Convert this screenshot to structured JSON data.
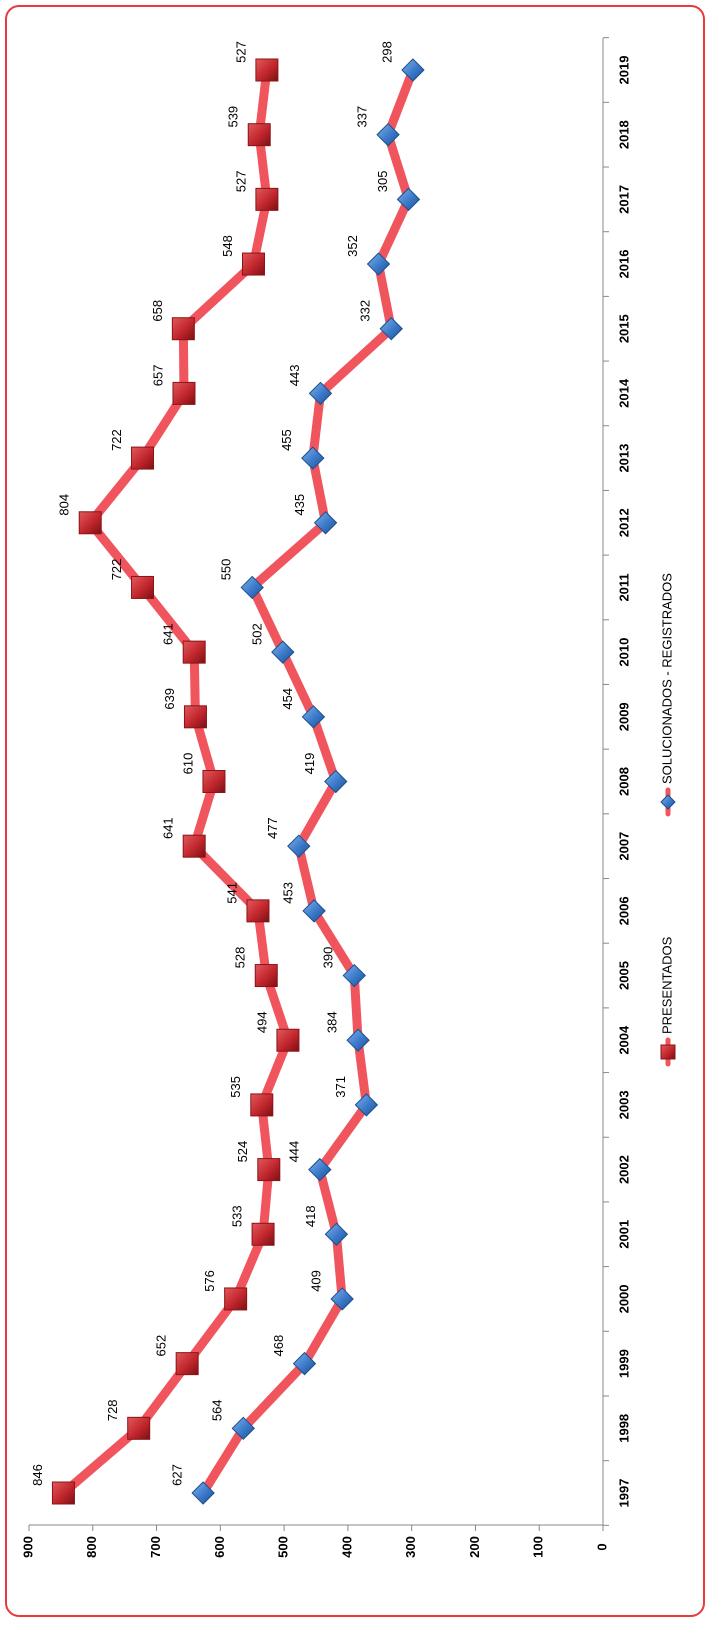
{
  "chart_data": {
    "type": "line",
    "title": "",
    "xlabel": "",
    "ylabel": "",
    "categories": [
      "1997",
      "1998",
      "1999",
      "2000",
      "2001",
      "2002",
      "2003",
      "2004",
      "2005",
      "2006",
      "2007",
      "2008",
      "2009",
      "2010",
      "2011",
      "2012",
      "2013",
      "2014",
      "2015",
      "2016",
      "2017",
      "2018",
      "2019"
    ],
    "ylim": [
      0,
      900
    ],
    "yticks": [
      "0",
      "100",
      "200",
      "300",
      "400",
      "500",
      "600",
      "700",
      "800",
      "900"
    ],
    "grid": false,
    "orientation": "rotated 90° counter-clockwise",
    "legend_position": "bottom",
    "series": [
      {
        "name": "PRESENTADOS",
        "marker": "square",
        "line_color": "#f0545c",
        "marker_color": "#c0262c",
        "values": [
          846,
          728,
          652,
          576,
          533,
          524,
          535,
          494,
          528,
          541,
          641,
          610,
          639,
          641,
          722,
          804,
          722,
          657,
          658,
          548,
          527,
          539,
          527
        ]
      },
      {
        "name": "SOLUCIONADOS - REGISTRADOS",
        "marker": "diamond",
        "line_color": "#f0545c",
        "marker_color": "#3a78c8",
        "values": [
          627,
          564,
          468,
          409,
          418,
          444,
          371,
          384,
          390,
          453,
          477,
          419,
          454,
          502,
          550,
          435,
          455,
          443,
          332,
          352,
          305,
          337,
          298
        ]
      }
    ]
  }
}
